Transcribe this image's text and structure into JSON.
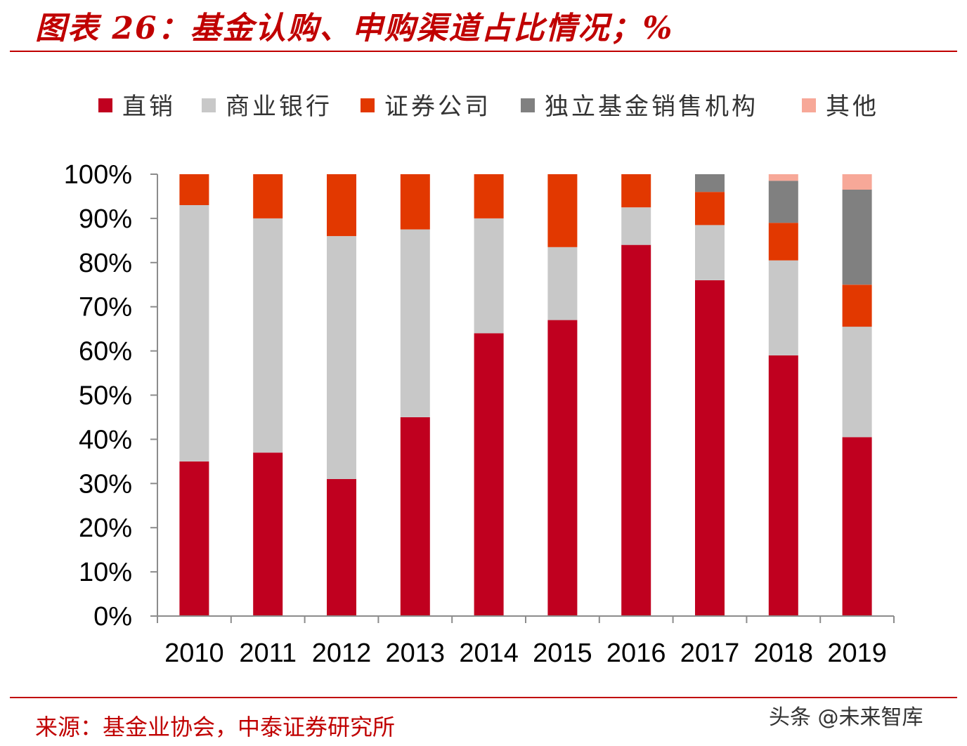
{
  "title": "图表 26：基金认购、申购渠道占比情况；%",
  "source": "来源：基金业协会，中泰证券研究所",
  "watermark": "头条 @未来智库",
  "chart_data": {
    "type": "bar",
    "stacked": true,
    "categories": [
      "2010",
      "2011",
      "2012",
      "2013",
      "2014",
      "2015",
      "2016",
      "2017",
      "2018",
      "2019"
    ],
    "yticks": [
      "0%",
      "10%",
      "20%",
      "30%",
      "40%",
      "50%",
      "60%",
      "70%",
      "80%",
      "90%",
      "100%"
    ],
    "ylim": [
      0,
      100
    ],
    "legend_position": "top",
    "grid": false,
    "series": [
      {
        "name": "直销",
        "color": "#c0001f",
        "values": [
          35,
          37,
          31,
          45,
          64,
          67,
          84,
          76,
          59,
          40.5
        ]
      },
      {
        "name": "商业银行",
        "color": "#c8c8c8",
        "values": [
          58,
          53,
          55,
          42.5,
          26,
          16.5,
          8.5,
          12.5,
          21.5,
          25
        ]
      },
      {
        "name": "证券公司",
        "color": "#e23800",
        "values": [
          7,
          10,
          14,
          12.5,
          10,
          16.5,
          7.5,
          7.5,
          8.5,
          9.5
        ]
      },
      {
        "name": "独立基金销售机构",
        "color": "#808080",
        "values": [
          0,
          0,
          0,
          0,
          0,
          0,
          0,
          4,
          9.5,
          21.5
        ]
      },
      {
        "name": "其他",
        "color": "#f7a898",
        "values": [
          0,
          0,
          0,
          0,
          0,
          0,
          0,
          0,
          1.5,
          3.5
        ]
      }
    ]
  }
}
